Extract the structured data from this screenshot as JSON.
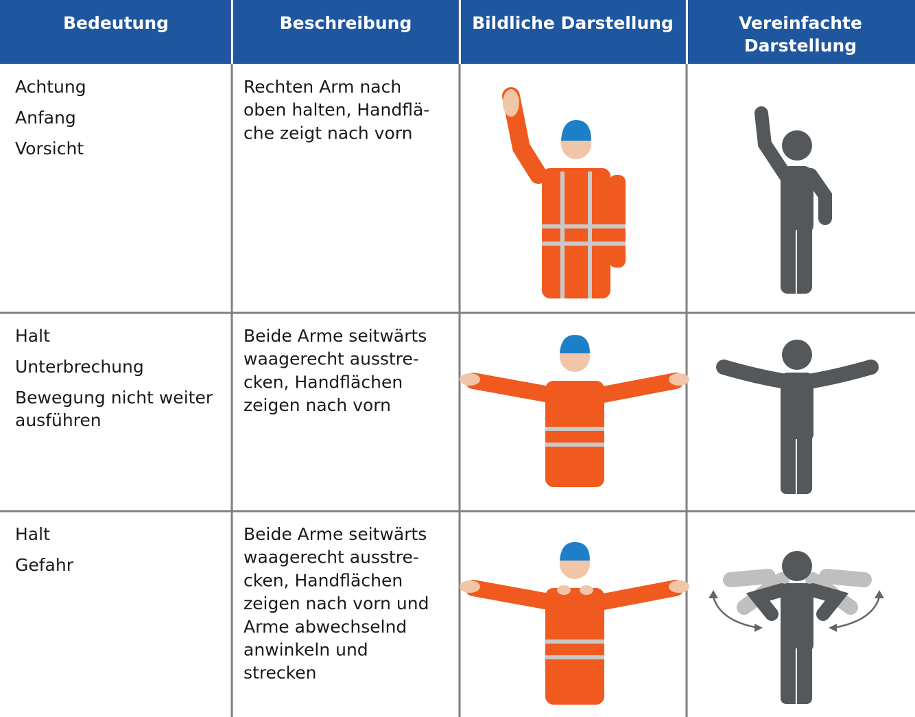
{
  "header": [
    [
      "Bedeutung"
    ],
    [
      "Beschreibung"
    ],
    [
      "Bildliche Darstellung"
    ],
    [
      "Vereinfachte",
      "Darstellung"
    ]
  ],
  "rows": [
    {
      "meaning": [
        [
          "Achtung"
        ],
        [
          "Anfang"
        ],
        [
          "Vorsicht"
        ]
      ],
      "description": [
        "Rechten Arm nach",
        "oben halten, Handflä-",
        "che zeigt nach vorn"
      ]
    },
    {
      "meaning": [
        [
          "Halt"
        ],
        [
          "Unterbrechung"
        ],
        [
          "Bewegung nicht weiter",
          "ausführen"
        ]
      ],
      "description": [
        "Beide Arme seitwärts",
        "waagerecht ausstre-",
        "cken, Handflächen",
        "zeigen nach vorn"
      ]
    },
    {
      "meaning": [
        [
          "Halt"
        ],
        [
          "Gefahr"
        ]
      ],
      "description": [
        "Beide Arme seitwärts",
        "waagerecht ausstre-",
        "cken, Handflächen",
        "zeigen nach vorn und",
        "Arme abwechselnd",
        "anwinkeln und",
        "strecken"
      ]
    }
  ]
}
